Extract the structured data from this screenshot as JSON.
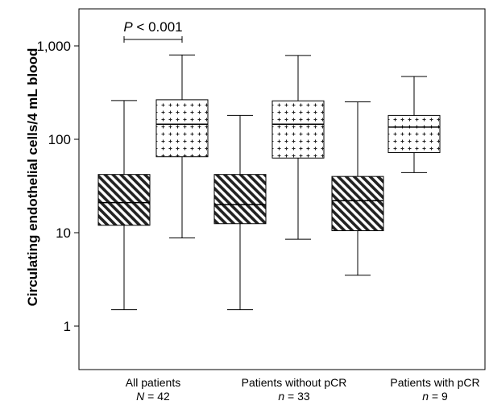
{
  "chart_data": {
    "type": "box",
    "ylabel": "Circulating endothelial cells/4 mL blood",
    "yscale": "log",
    "ylim": [
      0.6,
      2600
    ],
    "yticks": [
      {
        "value": 1,
        "label": "1"
      },
      {
        "value": 10,
        "label": "10"
      },
      {
        "value": 100,
        "label": "100"
      },
      {
        "value": 1000,
        "label": "1,000"
      }
    ],
    "groups": [
      {
        "label": "All patients",
        "n_prefix": "N",
        "n_label": " = 42"
      },
      {
        "label": "Patients without pCR",
        "n_prefix": "n",
        "n_label": " = 33"
      },
      {
        "label": "Patients with pCR",
        "n_prefix": "n",
        "n_label": " = 9"
      }
    ],
    "boxes": [
      {
        "group": 0,
        "pattern": "hatch",
        "min": 1.5,
        "q1": 12,
        "median": 21,
        "q3": 42,
        "max": 260
      },
      {
        "group": 0,
        "pattern": "cross",
        "min": 8.8,
        "q1": 65,
        "median": 145,
        "q3": 265,
        "max": 800
      },
      {
        "group": 1,
        "pattern": "hatch",
        "min": 1.5,
        "q1": 12.5,
        "median": 20,
        "q3": 42,
        "max": 180
      },
      {
        "group": 1,
        "pattern": "cross",
        "min": 8.5,
        "q1": 63,
        "median": 145,
        "q3": 258,
        "max": 790
      },
      {
        "group": 2,
        "pattern": "hatch",
        "min": 3.5,
        "q1": 10.5,
        "median": 22,
        "q3": 40,
        "max": 252
      },
      {
        "group": 2,
        "pattern": "cross",
        "min": 44,
        "q1": 72,
        "median": 135,
        "q3": 180,
        "max": 470
      }
    ],
    "annotation": {
      "italic": "P",
      "text": " < 0.001",
      "boxes": [
        0,
        1
      ]
    }
  }
}
